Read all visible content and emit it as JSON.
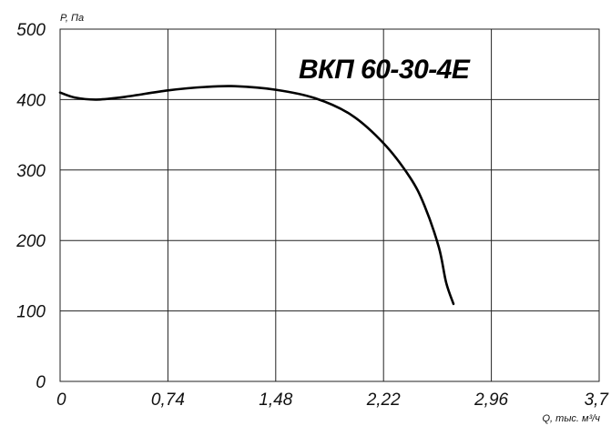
{
  "chart_data": {
    "type": "line",
    "title": "ВКП 60-30-4E",
    "ylabel": "P, Па",
    "xlabel": "Q, тыс. м³/ч",
    "xlim": [
      0,
      3.7
    ],
    "ylim": [
      0,
      500
    ],
    "x_ticks": [
      0,
      0.74,
      1.48,
      2.22,
      2.96,
      3.7
    ],
    "x_tick_labels": [
      "0",
      "0,74",
      "1,48",
      "2,22",
      "2,96",
      "3,7"
    ],
    "y_ticks": [
      0,
      100,
      200,
      300,
      400,
      500
    ],
    "y_tick_labels": [
      "0",
      "100",
      "200",
      "300",
      "400",
      "500"
    ],
    "grid": true,
    "series": [
      {
        "x": [
          0,
          0.1,
          0.25,
          0.45,
          0.74,
          1.0,
          1.2,
          1.48,
          1.75,
          2.0,
          2.22,
          2.4,
          2.5,
          2.6,
          2.65,
          2.7
        ],
        "y": [
          410,
          403,
          400,
          404,
          413,
          418,
          419,
          414,
          402,
          378,
          338,
          290,
          250,
          190,
          140,
          110
        ]
      }
    ]
  }
}
